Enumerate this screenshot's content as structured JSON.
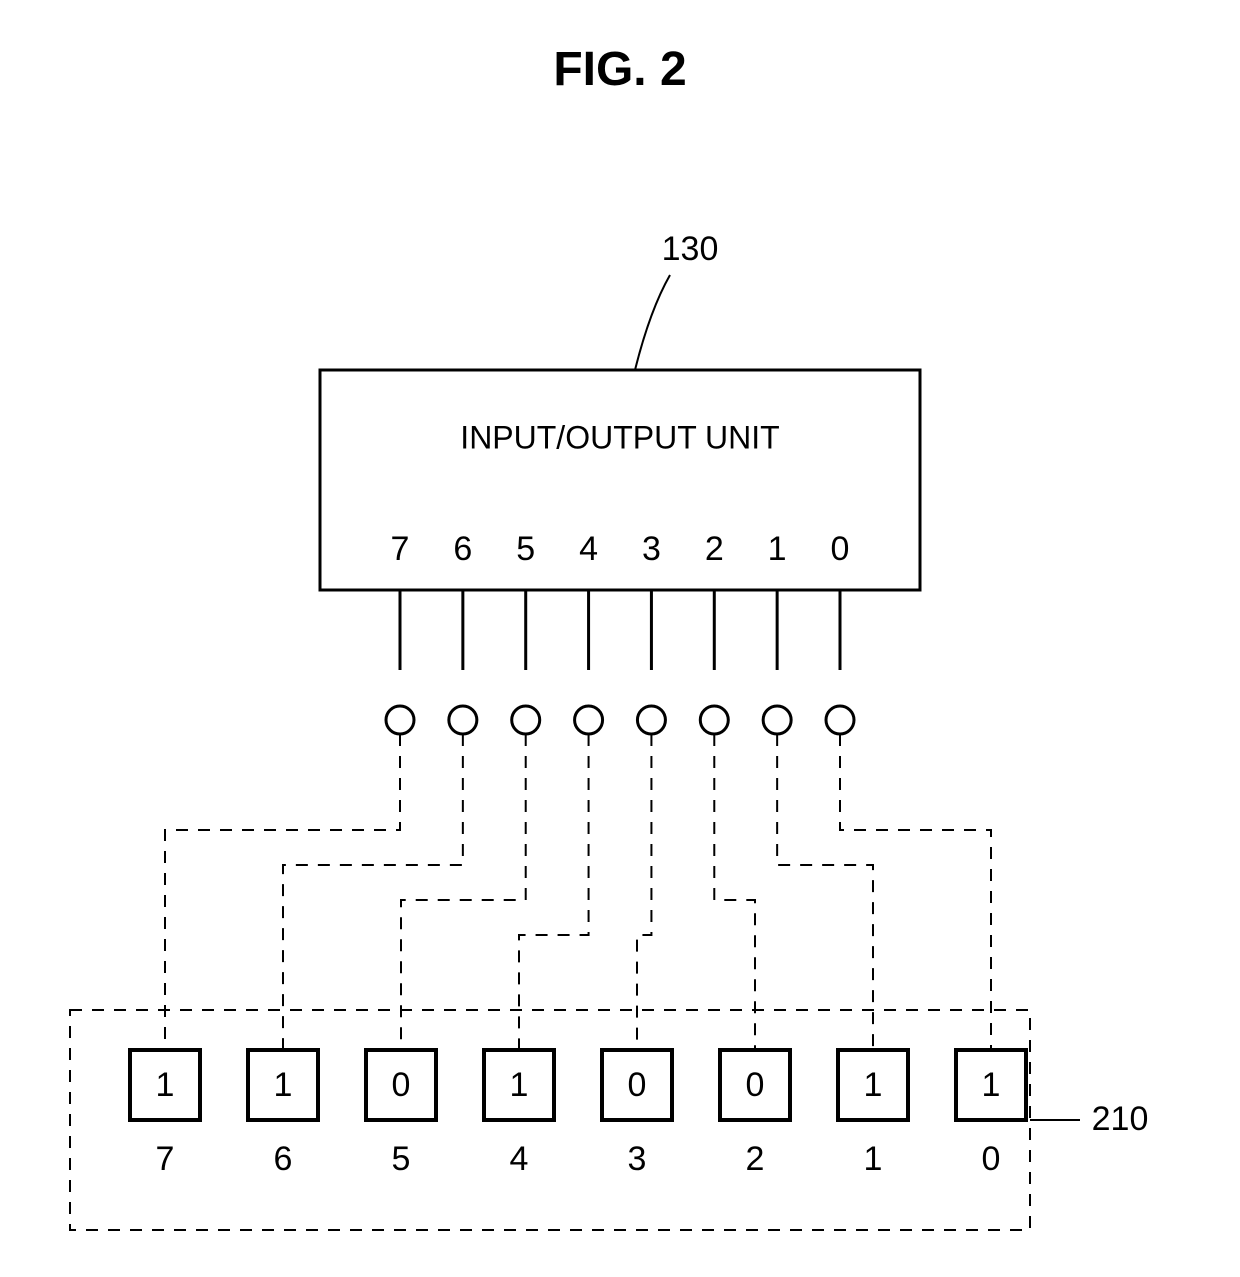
{
  "figure": {
    "title": "FIG. 2",
    "title_fontsize": 48,
    "background_color": "#ffffff",
    "line_color": "#000000",
    "text_color": "#000000"
  },
  "io_unit": {
    "ref": "130",
    "label": "INPUT/OUTPUT UNIT",
    "ports": [
      "7",
      "6",
      "5",
      "4",
      "3",
      "2",
      "1",
      "0"
    ],
    "box_stroke_width": 3,
    "pin_stroke_width": 3,
    "node_radius": 14,
    "node_fill": "#ffffff"
  },
  "register": {
    "ref": "210",
    "bits": [
      "1",
      "1",
      "0",
      "1",
      "0",
      "0",
      "1",
      "1"
    ],
    "indices": [
      "7",
      "6",
      "5",
      "4",
      "3",
      "2",
      "1",
      "0"
    ],
    "cell_size": 70,
    "cell_stroke_width": 4,
    "dash_pattern": "12,10"
  },
  "connections": {
    "dash_pattern": "12,10",
    "stroke_width": 2
  }
}
